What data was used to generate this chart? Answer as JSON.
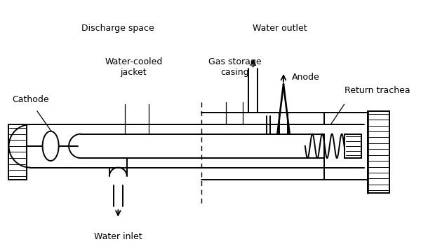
{
  "bg_color": "#ffffff",
  "line_color": "#000000",
  "fig_width": 6.0,
  "fig_height": 3.59,
  "dpi": 100,
  "labels": {
    "discharge_space": "Discharge space",
    "water_outlet": "Water outlet",
    "cathode": "Cathode",
    "water_cooled_jacket": "Water-cooled\njacket",
    "gas_storage_casing": "Gas storage\ncasing",
    "anode": "Anode",
    "return_trachea": "Return trachea",
    "water_inlet": "Water inlet"
  }
}
